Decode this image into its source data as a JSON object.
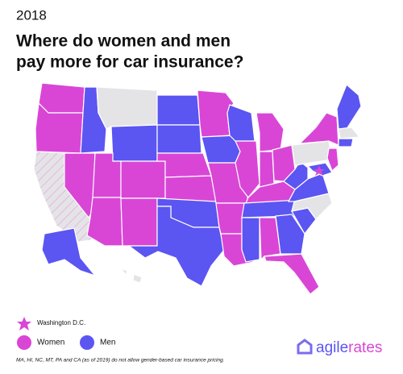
{
  "header": {
    "year": "2018",
    "title_line_1": "Where do women and men",
    "title_line_2": "pay more for car insurance?"
  },
  "legend": {
    "dc": "Washington D.C.",
    "women": "Women",
    "men": "Men"
  },
  "footnote": "MA, HI, NC, MT, PA and CA (as of 2019) do not allow gender-based car insurance pricing.",
  "logo": {
    "part_1": "agile",
    "part_2": "rates"
  }
}
